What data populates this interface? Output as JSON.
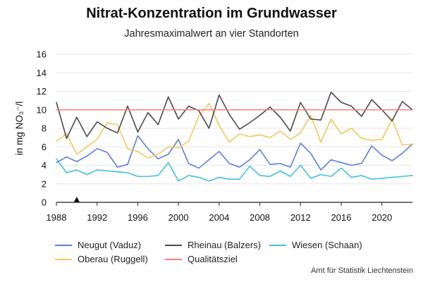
{
  "title": "Nitrat-Konzentration im Grundwasser",
  "subtitle": "Jahresmaximalwert an vier Standorten",
  "source": "Amt für Statistik Liechtenstein",
  "chart_data": {
    "type": "line",
    "title": "Nitrat-Konzentration im Grundwasser",
    "subtitle": "Jahresmaximalwert an vier Standorten",
    "xlabel": "",
    "ylabel": "in mg NO₃⁻/l",
    "xlim": [
      1988,
      2023
    ],
    "ylim": [
      0,
      16
    ],
    "x_ticks": [
      1988,
      1992,
      1996,
      2000,
      2004,
      2008,
      2012,
      2016,
      2020
    ],
    "y_ticks": [
      0,
      2,
      4,
      6,
      8,
      10,
      12,
      14,
      16
    ],
    "grid": "horizontal",
    "legend_position": "bottom",
    "marker": {
      "x": 1990,
      "symbol": "triangle"
    },
    "series": [
      {
        "name": "Neugut (Vaduz)",
        "color": "#5b7fe0",
        "x": [
          1988,
          1989,
          1990,
          1991,
          1992,
          1993,
          1994,
          1995,
          1996,
          1997,
          1998,
          1999,
          2000,
          2001,
          2002,
          2003,
          2004,
          2005,
          2006,
          2007,
          2008,
          2009,
          2010,
          2011,
          2012,
          2013,
          2014,
          2015,
          2016,
          2017,
          2018,
          2019,
          2020,
          2021,
          2022,
          2023
        ],
        "values": [
          4.3,
          4.9,
          4.4,
          5.0,
          5.8,
          5.4,
          3.8,
          4.1,
          7.2,
          5.8,
          4.7,
          5.2,
          6.8,
          4.2,
          3.7,
          4.6,
          5.5,
          4.2,
          3.8,
          4.6,
          5.7,
          4.1,
          4.2,
          3.8,
          6.4,
          5.3,
          3.5,
          4.6,
          4.3,
          4.0,
          4.2,
          6.1,
          5.1,
          4.5,
          5.3,
          6.3
        ]
      },
      {
        "name": "Oberau (Ruggell)",
        "color": "#f2c85b",
        "x": [
          1988,
          1989,
          1990,
          1991,
          1992,
          1993,
          1994,
          1995,
          1996,
          1997,
          1998,
          1999,
          2000,
          2001,
          2002,
          2003,
          2004,
          2005,
          2006,
          2007,
          2008,
          2009,
          2010,
          2011,
          2012,
          2013,
          2014,
          2015,
          2016,
          2017,
          2018,
          2019,
          2020,
          2021,
          2022,
          2023
        ],
        "values": [
          6.6,
          7.4,
          5.2,
          6.0,
          6.8,
          8.6,
          8.4,
          5.8,
          5.5,
          4.8,
          5.2,
          6.0,
          5.9,
          6.6,
          9.3,
          10.7,
          8.3,
          6.5,
          7.4,
          7.1,
          7.3,
          7.0,
          7.7,
          6.8,
          7.5,
          9.4,
          6.5,
          9.0,
          7.4,
          8.0,
          6.9,
          6.7,
          6.8,
          9.0,
          6.2,
          6.3
        ]
      },
      {
        "name": "Rheinau (Balzers)",
        "color": "#4a4a4a",
        "x": [
          1988,
          1989,
          1990,
          1991,
          1992,
          1993,
          1994,
          1995,
          1996,
          1997,
          1998,
          1999,
          2000,
          2001,
          2002,
          2003,
          2004,
          2005,
          2006,
          2007,
          2008,
          2009,
          2010,
          2011,
          2012,
          2013,
          2014,
          2015,
          2016,
          2017,
          2018,
          2019,
          2020,
          2021,
          2022,
          2023
        ],
        "values": [
          10.8,
          6.9,
          9.2,
          7.1,
          8.7,
          8.0,
          7.5,
          10.4,
          7.6,
          9.7,
          8.4,
          11.4,
          9.0,
          10.4,
          9.9,
          8.0,
          11.6,
          9.5,
          7.9,
          8.6,
          9.4,
          10.3,
          9.2,
          7.7,
          10.8,
          9.0,
          8.9,
          11.9,
          10.8,
          10.4,
          9.3,
          11.1,
          10.0,
          8.8,
          10.9,
          10.0
        ]
      },
      {
        "name": "Wiesen (Schaan)",
        "color": "#3ec0e0",
        "x": [
          1988,
          1989,
          1990,
          1991,
          1992,
          1993,
          1994,
          1995,
          1996,
          1997,
          1998,
          1999,
          2000,
          2001,
          2002,
          2003,
          2004,
          2005,
          2006,
          2007,
          2008,
          2009,
          2010,
          2011,
          2012,
          2013,
          2014,
          2015,
          2016,
          2017,
          2018,
          2019,
          2020,
          2021,
          2022,
          2023
        ],
        "values": [
          4.7,
          3.2,
          3.5,
          3.0,
          3.5,
          3.4,
          3.3,
          3.2,
          2.8,
          2.8,
          2.9,
          4.3,
          2.3,
          2.9,
          2.7,
          2.3,
          2.7,
          2.5,
          2.5,
          3.9,
          2.9,
          2.8,
          3.4,
          2.8,
          4.0,
          2.6,
          3.0,
          2.8,
          3.7,
          2.7,
          2.9,
          2.5,
          2.6,
          2.7,
          2.8,
          2.9
        ]
      },
      {
        "name": "Qualitätsziel",
        "color": "#ff7a7a",
        "x": [
          1988,
          2023
        ],
        "values": [
          10,
          10
        ]
      }
    ]
  }
}
